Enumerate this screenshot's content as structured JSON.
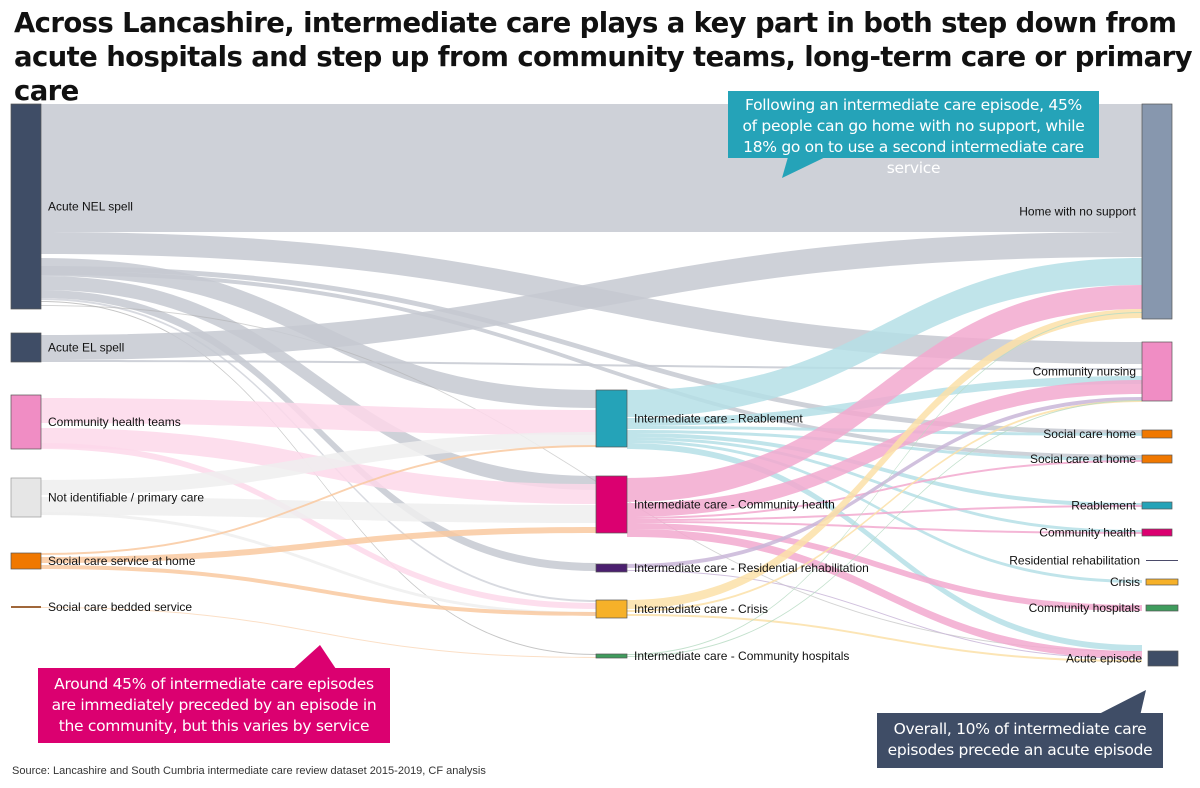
{
  "title": "Across Lancashire, intermediate care plays a key part in both step down from acute hospitals and step up from community teams, long-term care or primary care",
  "colors": {
    "teal": "#25a3b8",
    "magenta": "#db0070",
    "navy": "#3f4d66",
    "gray_flow": "#c5c9d1"
  },
  "nodes": {
    "sources": [
      {
        "label": "Acute NEL spell",
        "color": "#3f4d66"
      },
      {
        "label": "Acute EL spell",
        "color": "#3f4d66"
      },
      {
        "label": "Community health teams",
        "color": "#f08dc4"
      },
      {
        "label": "Not identifiable / primary care",
        "color": "#e6e6e6"
      },
      {
        "label": "Social care service at home",
        "color": "#f07800"
      },
      {
        "label": "Social care bedded service",
        "color": "#a0673a"
      }
    ],
    "intermediate": [
      {
        "label": "Intermediate care - Reablement",
        "color": "#25a3b8"
      },
      {
        "label": "Intermediate care - Community health",
        "color": "#db0070"
      },
      {
        "label": "Intermediate care - Residential rehabilitation",
        "color": "#4b1f6f"
      },
      {
        "label": "Intermediate care - Crisis",
        "color": "#f6b129"
      },
      {
        "label": "Intermediate care - Community hospitals",
        "color": "#3f9c5d"
      }
    ],
    "outcomes": [
      {
        "label": "Home with no support",
        "color": "#8797ae"
      },
      {
        "label": "Community nursing",
        "color": "#f08dc4"
      },
      {
        "label": "Social care home",
        "color": "#f07800"
      },
      {
        "label": "Social care at home",
        "color": "#f07800"
      },
      {
        "label": "Reablement",
        "color": "#25a3b8"
      },
      {
        "label": "Community health",
        "color": "#db0070"
      },
      {
        "label": "Residential rehabilitation",
        "color": "#4b4b6a"
      },
      {
        "label": "Crisis",
        "color": "#f6b129"
      },
      {
        "label": "Community hospitals",
        "color": "#3f9c5d"
      },
      {
        "label": "Acute episode",
        "color": "#3f4d66"
      }
    ]
  },
  "callouts": {
    "top": "Following an intermediate care episode, 45% of people can go home with no support, while 18% go on to use a second intermediate care service",
    "left": "Around 45% of intermediate care episodes are immediately preceded by an episode in the community, but this varies by service",
    "right": "Overall, 10% of intermediate care episodes precede an acute episode"
  },
  "source": "Source: Lancashire and South Cumbria intermediate care review dataset 2015-2019, CF analysis"
}
